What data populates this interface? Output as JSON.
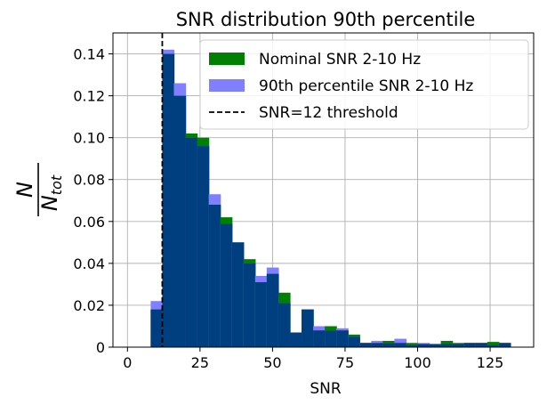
{
  "chart_data": {
    "type": "bar",
    "title": "SNR distribution 90th percentile",
    "xlabel": "SNR",
    "ylabel": "N/N_tot",
    "ylabel_parts": {
      "numerator": "N",
      "denominator": "N",
      "subscript": "tot"
    },
    "xlim": [
      -5,
      140
    ],
    "ylim": [
      0,
      0.15
    ],
    "xticks": [
      0,
      25,
      50,
      75,
      100,
      125
    ],
    "yticks": [
      0,
      0.02,
      0.04,
      0.06,
      0.08,
      0.1,
      0.12,
      0.14
    ],
    "ytick_labels": [
      "0",
      "0.02",
      "0.04",
      "0.06",
      "0.08",
      "0.10",
      "0.12",
      "0.14"
    ],
    "grid": true,
    "legend_position": "top-right",
    "bin_edges": [
      8,
      12,
      16,
      20,
      24,
      28,
      32,
      36,
      40,
      44,
      48,
      52,
      56,
      60,
      64,
      68,
      72,
      76,
      80,
      84,
      88,
      92,
      96,
      100,
      104,
      108,
      112,
      116,
      120,
      124,
      128,
      132,
      136
    ],
    "series": [
      {
        "name": "Nominal SNR 2-10 Hz",
        "color": "#008000",
        "values": [
          0.018,
          0.14,
          0.12,
          0.102,
          0.1,
          0.068,
          0.062,
          0.05,
          0.042,
          0.031,
          0.035,
          0.026,
          0.007,
          0.018,
          0.008,
          0.01,
          0.008,
          0.006,
          0.002,
          0.002,
          0.003,
          0.002,
          0.002,
          0.0015,
          0.0015,
          0.003,
          0.002,
          0.002,
          0.002,
          0.0025,
          0.002,
          0.0
        ]
      },
      {
        "name": "90th percentile SNR 2-10 Hz",
        "color": "#8080ff",
        "values": [
          0.022,
          0.142,
          0.126,
          0.1,
          0.096,
          0.073,
          0.059,
          0.05,
          0.04,
          0.034,
          0.038,
          0.021,
          0.007,
          0.018,
          0.01,
          0.008,
          0.009,
          0.005,
          0.002,
          0.003,
          0.002,
          0.004,
          0.001,
          0.002,
          0.0015,
          0.0015,
          0.0015,
          0.002,
          0.002,
          0.001,
          0.002,
          0.0
        ]
      }
    ],
    "threshold": {
      "name": "SNR=12 threshold",
      "x": 12,
      "style": "dashed",
      "color": "#000000"
    },
    "overlap_color": "#003f7f"
  }
}
